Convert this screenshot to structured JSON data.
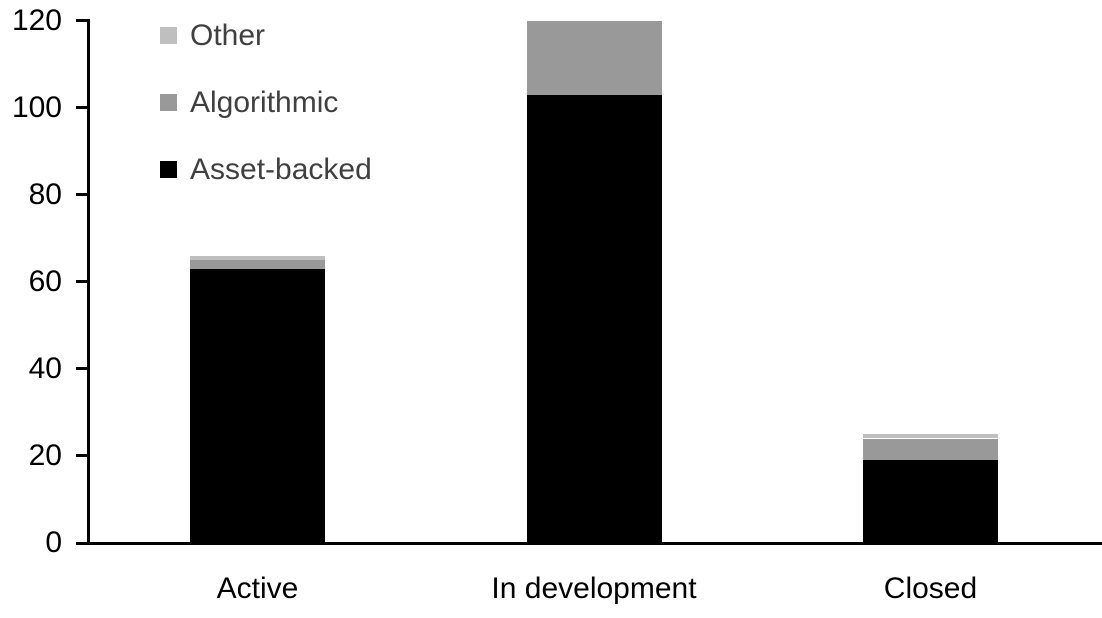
{
  "chart_data": {
    "type": "bar",
    "stacked": true,
    "title": "",
    "xlabel": "",
    "ylabel": "",
    "categories": [
      "Active",
      "In development",
      "Closed"
    ],
    "series": [
      {
        "name": "Asset-backed",
        "color": "#000000",
        "values": [
          63,
          103,
          19
        ]
      },
      {
        "name": "Algorithmic",
        "color": "#999999",
        "values": [
          2,
          17,
          5
        ]
      },
      {
        "name": "Other",
        "color": "#bfbfbf",
        "values": [
          1,
          0,
          1
        ]
      }
    ],
    "totals": [
      66,
      120,
      25
    ],
    "ylim": [
      0,
      120
    ],
    "yticks": [
      0,
      20,
      40,
      60,
      80,
      100,
      120
    ],
    "grid": false,
    "legend_position": "top-left",
    "legend_order_top_to_bottom": [
      "Other",
      "Algorithmic",
      "Asset-backed"
    ]
  },
  "colors": {
    "background": "#ffffff",
    "axis": "#000000",
    "axis_text": "#000000",
    "legend_text": "#404040"
  }
}
